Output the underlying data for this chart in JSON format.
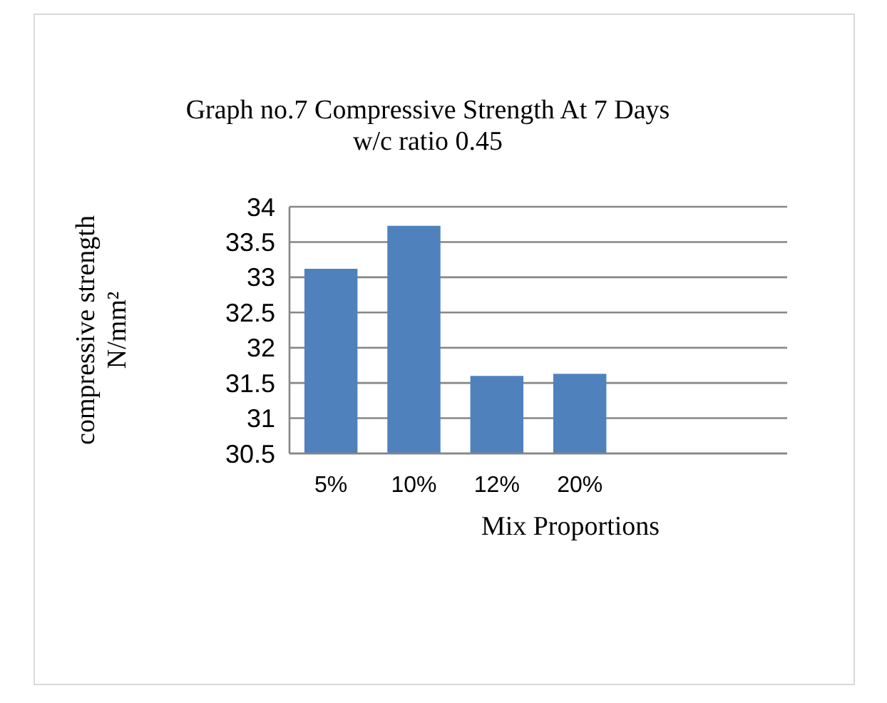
{
  "chart_data": {
    "type": "bar",
    "title": "Graph no.7 Compressive Strength At 7 Days",
    "subtitle": "w/c ratio 0.45",
    "xlabel": "Mix Proportions",
    "ylabel": "compressive strength N/mm²",
    "categories": [
      "5%",
      "10%",
      "12%",
      "20%",
      null,
      null
    ],
    "values": [
      33.12,
      33.73,
      31.6,
      31.63,
      null,
      null
    ],
    "color": "#4f81bd",
    "ylim": [
      30.5,
      34
    ],
    "yticks": [
      30.5,
      31,
      31.5,
      32,
      32.5,
      33,
      33.5,
      34
    ],
    "grid": "y"
  }
}
